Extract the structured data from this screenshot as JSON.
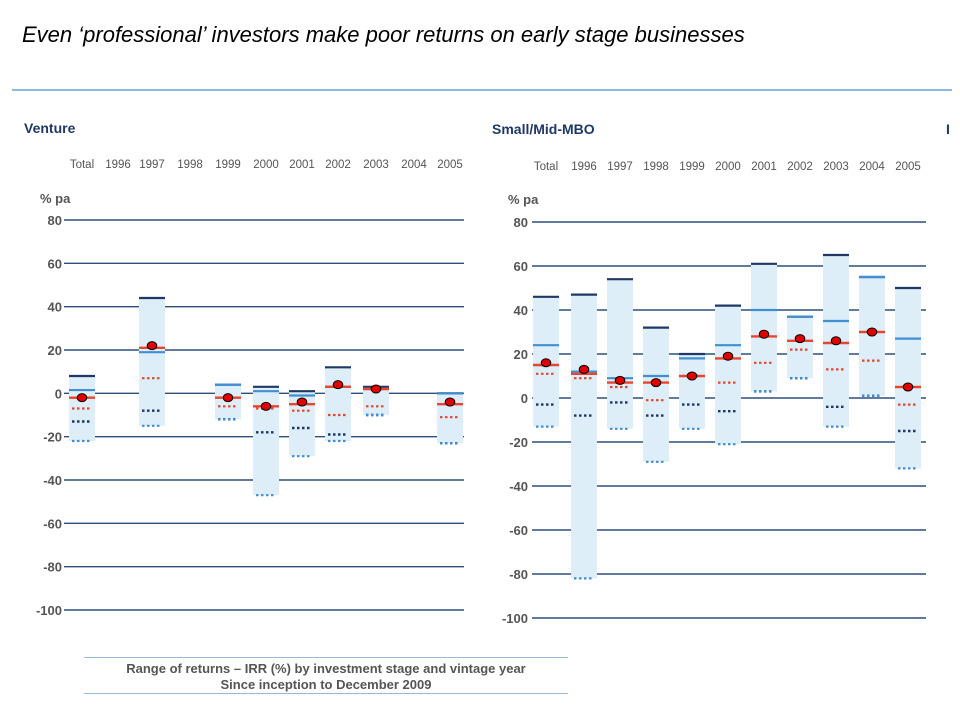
{
  "slide": {
    "title": "Even ‘professional’ investors make poor returns on early stage businesses"
  },
  "caption": {
    "line1": "Range of returns – IRR (%) by investment stage and vintage year",
    "line2": "Since inception to December 2009"
  },
  "colors": {
    "band": "#ddeef8",
    "top_quartile": "#1f3864",
    "upper_quartile": "#3f8fd2",
    "median": "#e8442e",
    "pooled_marker": "#e00000",
    "lower_quartile": "#e8442e",
    "bottom_quartile": "#1f3864",
    "min": "#3f8fd2",
    "axis_text": "#555555",
    "gridline": "#2b4f7a"
  },
  "chart_data": [
    {
      "type": "range",
      "title": "Venture",
      "ylabel": "% pa",
      "ylim": [
        -100,
        80
      ],
      "yticks": [
        80,
        60,
        40,
        20,
        0,
        -20,
        -40,
        -60,
        -80,
        -100
      ],
      "categories": [
        "Total",
        "1996",
        "1997",
        "1998",
        "1999",
        "2000",
        "2001",
        "2002",
        "2003",
        "2004",
        "2005"
      ],
      "series": [
        {
          "category": "Total",
          "max": 8,
          "upper": 1.5,
          "median": -2,
          "pooled": -2,
          "lower": -7,
          "p10": -13,
          "min": -22
        },
        {
          "category": "1997",
          "max": 44,
          "upper": 19,
          "median": 21,
          "pooled": 22,
          "lower": 7,
          "p10": -8,
          "min": -15
        },
        {
          "category": "1999",
          "max": 4,
          "upper": 4,
          "median": -2,
          "pooled": -2,
          "lower": -6,
          "p10": -12,
          "min": -12
        },
        {
          "category": "2000",
          "max": 3,
          "upper": 1,
          "median": -6,
          "pooled": -6,
          "lower": -7,
          "p10": -18,
          "min": -47
        },
        {
          "category": "2001",
          "max": 1,
          "upper": -1,
          "median": -5,
          "pooled": -4,
          "lower": -8,
          "p10": -16,
          "min": -29
        },
        {
          "category": "2002",
          "max": 12,
          "upper": 3,
          "median": 3,
          "pooled": 4,
          "lower": -10,
          "p10": -19,
          "min": -22
        },
        {
          "category": "2003",
          "max": 3,
          "upper": 2,
          "median": 2,
          "pooled": 2,
          "lower": -6,
          "p10": -10,
          "min": -10
        },
        {
          "category": "2005",
          "max": 0,
          "upper": 0,
          "median": -5,
          "pooled": -4,
          "lower": -11,
          "p10": -23,
          "min": -23
        }
      ]
    },
    {
      "type": "range",
      "title": "Small/Mid-MBO",
      "ylabel": "% pa",
      "ylim": [
        -100,
        80
      ],
      "yticks": [
        80,
        60,
        40,
        20,
        0,
        -20,
        -40,
        -60,
        -80,
        -100
      ],
      "categories": [
        "Total",
        "1996",
        "1997",
        "1998",
        "1999",
        "2000",
        "2001",
        "2002",
        "2003",
        "2004",
        "2005"
      ],
      "series": [
        {
          "category": "Total",
          "max": 46,
          "upper": 24,
          "median": 15,
          "pooled": 16,
          "lower": 11,
          "p10": -3,
          "min": -13
        },
        {
          "category": "1996",
          "max": 47,
          "upper": 12,
          "median": 11,
          "pooled": 13,
          "lower": 9,
          "p10": -8,
          "min": -82
        },
        {
          "category": "1997",
          "max": 54,
          "upper": 9,
          "median": 7,
          "pooled": 8,
          "lower": 5,
          "p10": -2,
          "min": -14
        },
        {
          "category": "1998",
          "max": 32,
          "upper": 10,
          "median": 7,
          "pooled": 7,
          "lower": -1,
          "p10": -8,
          "min": -29
        },
        {
          "category": "1999",
          "max": 20,
          "upper": 18,
          "median": 10,
          "pooled": 10,
          "lower": 10,
          "p10": -3,
          "min": -14
        },
        {
          "category": "2000",
          "max": 42,
          "upper": 24,
          "median": 18,
          "pooled": 19,
          "lower": 7,
          "p10": -6,
          "min": -21
        },
        {
          "category": "2001",
          "max": 61,
          "upper": 40,
          "median": 28,
          "pooled": 29,
          "lower": 16,
          "p10": 3,
          "min": 3
        },
        {
          "category": "2002",
          "max": 37,
          "upper": 37,
          "median": 26,
          "pooled": 27,
          "lower": 22,
          "p10": 9,
          "min": 9
        },
        {
          "category": "2003",
          "max": 65,
          "upper": 35,
          "median": 25,
          "pooled": 26,
          "lower": 13,
          "p10": -4,
          "min": -13
        },
        {
          "category": "2004",
          "max": 55,
          "upper": 55,
          "median": 30,
          "pooled": 30,
          "lower": 17,
          "p10": 1,
          "min": 1
        },
        {
          "category": "2005",
          "max": 50,
          "upper": 27,
          "median": 5,
          "pooled": 5,
          "lower": -3,
          "p10": -15,
          "min": -32
        }
      ]
    }
  ]
}
